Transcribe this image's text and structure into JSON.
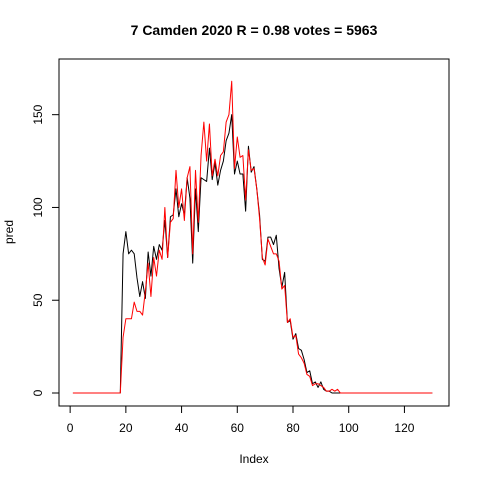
{
  "chart_data": {
    "type": "line",
    "title": "7 Camden 2020 R = 0.98 votes = 5963",
    "xlabel": "Index",
    "ylabel": "pred",
    "xlim": [
      -4,
      136
    ],
    "ylim": [
      -7,
      180
    ],
    "x_ticks": [
      0,
      20,
      40,
      60,
      80,
      100,
      120
    ],
    "y_ticks": [
      0,
      50,
      100,
      150
    ],
    "grid": false,
    "legend": "none",
    "x": [
      1,
      2,
      3,
      4,
      5,
      6,
      7,
      8,
      9,
      10,
      11,
      12,
      13,
      14,
      15,
      16,
      17,
      18,
      19,
      20,
      21,
      22,
      23,
      24,
      25,
      26,
      27,
      28,
      29,
      30,
      31,
      32,
      33,
      34,
      35,
      36,
      37,
      38,
      39,
      40,
      41,
      42,
      43,
      44,
      45,
      46,
      47,
      48,
      49,
      50,
      51,
      52,
      53,
      54,
      55,
      56,
      57,
      58,
      59,
      60,
      61,
      62,
      63,
      64,
      65,
      66,
      67,
      68,
      69,
      70,
      71,
      72,
      73,
      74,
      75,
      76,
      77,
      78,
      79,
      80,
      81,
      82,
      83,
      84,
      85,
      86,
      87,
      88,
      89,
      90,
      91,
      92,
      93,
      94,
      95,
      96,
      97,
      98,
      99,
      100,
      101,
      102,
      103,
      104,
      105,
      106,
      107,
      108,
      109,
      110,
      111,
      112,
      113,
      114,
      115,
      116,
      117,
      118,
      119,
      120,
      121,
      122,
      123,
      124,
      125,
      126,
      127,
      128,
      129,
      130
    ],
    "series": [
      {
        "color": "#000000",
        "values": [
          0,
          0,
          0,
          0,
          0,
          0,
          0,
          0,
          0,
          0,
          0,
          0,
          0,
          0,
          0,
          0,
          0,
          0,
          75,
          87,
          75,
          77,
          75,
          62,
          52,
          60,
          51,
          76,
          63,
          79,
          72,
          80,
          77,
          93,
          73,
          95,
          96,
          110,
          95,
          102,
          96,
          116,
          105,
          70,
          110,
          87,
          116,
          115,
          114,
          132,
          115,
          124,
          112,
          120,
          125,
          136,
          140,
          150,
          118,
          125,
          118,
          118,
          98,
          133,
          119,
          122,
          110,
          96,
          72,
          71,
          84,
          84,
          80,
          85,
          67,
          57,
          65,
          38,
          39,
          29,
          32,
          24,
          23,
          18,
          11,
          12,
          5,
          6,
          3,
          6,
          2,
          1,
          1,
          0,
          0,
          0,
          0,
          0,
          0,
          0,
          0,
          0,
          0,
          0,
          0,
          0,
          0,
          0,
          0,
          0,
          0,
          0,
          0,
          0,
          0,
          0,
          0,
          0,
          0,
          0,
          0,
          0,
          0,
          0,
          0,
          0,
          0,
          0,
          0,
          0
        ]
      },
      {
        "color": "#ff0000",
        "values": [
          0,
          0,
          0,
          0,
          0,
          0,
          0,
          0,
          0,
          0,
          0,
          0,
          0,
          0,
          0,
          0,
          0,
          0,
          30,
          40,
          40,
          40,
          49,
          44,
          44,
          42,
          55,
          70,
          52,
          73,
          63,
          77,
          72,
          100,
          73,
          92,
          94,
          120,
          100,
          110,
          93,
          116,
          122,
          75,
          120,
          92,
          128,
          146,
          125,
          145,
          117,
          126,
          117,
          128,
          130,
          146,
          150,
          168,
          121,
          138,
          127,
          128,
          104,
          131,
          120,
          121,
          110,
          94,
          73,
          69,
          83,
          79,
          75,
          75,
          71,
          56,
          58,
          38,
          40,
          30,
          31,
          21,
          19,
          16,
          10,
          9,
          4,
          5,
          5,
          4,
          3,
          1,
          1,
          2,
          1,
          2,
          0,
          0,
          0,
          0,
          0,
          0,
          0,
          0,
          0,
          0,
          0,
          0,
          0,
          0,
          0,
          0,
          0,
          0,
          0,
          0,
          0,
          0,
          0,
          0,
          0,
          0,
          0,
          0,
          0,
          0,
          0,
          0,
          0,
          0
        ]
      }
    ]
  }
}
